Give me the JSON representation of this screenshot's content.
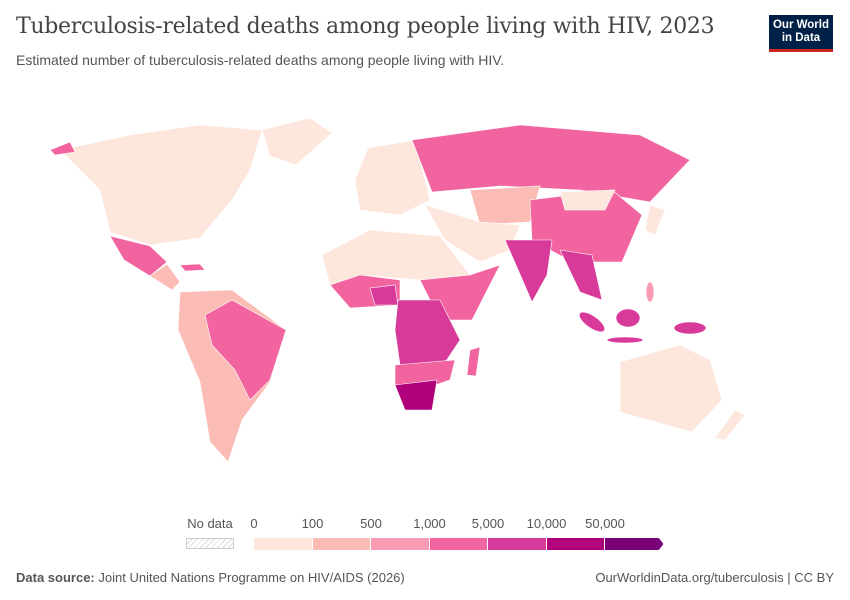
{
  "header": {
    "title": "Tuberculosis-related deaths among people living with HIV, 2023",
    "subtitle": "Estimated number of tuberculosis-related deaths among people living with HIV.",
    "logo": "Our World in Data"
  },
  "legend": {
    "no_data_label": "No data",
    "ticks": [
      "0",
      "100",
      "500",
      "1,000",
      "5,000",
      "10,000",
      "50,000"
    ],
    "bins": [
      {
        "range": "0–100",
        "color": "#fde6dc"
      },
      {
        "range": "100–500",
        "color": "#fbbcb5"
      },
      {
        "range": "500–1,000",
        "color": "#f99bb2"
      },
      {
        "range": "1,000–5,000",
        "color": "#f264a0"
      },
      {
        "range": "5,000–10,000",
        "color": "#d83a99"
      },
      {
        "range": "10,000–50,000",
        "color": "#b0007a"
      },
      {
        "range": ">50,000",
        "color": "#7a0077"
      }
    ]
  },
  "footer": {
    "source_label": "Data source:",
    "source": "Joint United Nations Programme on HIV/AIDS (2026)",
    "link": "OurWorldinData.org/tuberculosis | CC BY"
  }
}
